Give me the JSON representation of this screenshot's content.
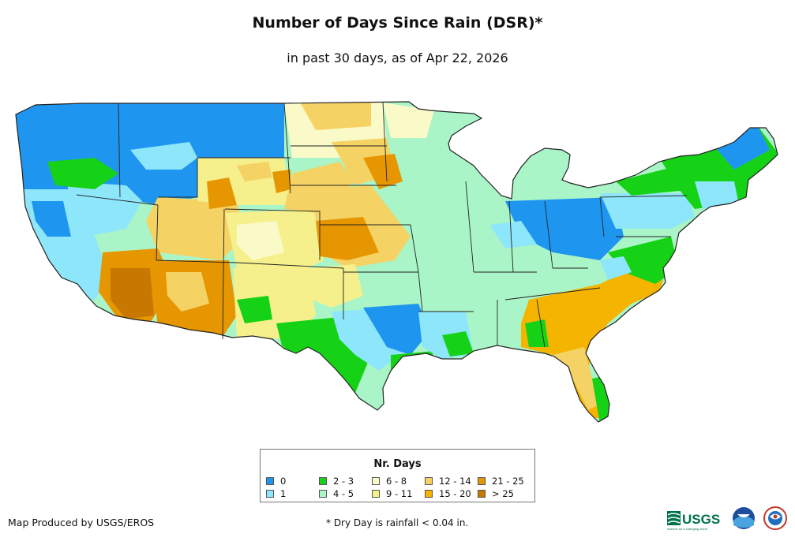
{
  "title": "Number of Days Since Rain (DSR)*",
  "subtitle": "in past 30 days, as of Apr 22, 2026",
  "legend": {
    "title": "Nr. Days",
    "items": [
      {
        "label": "0",
        "color": "#1e96f0"
      },
      {
        "label": "1",
        "color": "#8ee6fa"
      },
      {
        "label": "2 - 3",
        "color": "#16d216"
      },
      {
        "label": "4 - 5",
        "color": "#aaf5c8"
      },
      {
        "label": "6 - 8",
        "color": "#fafac8"
      },
      {
        "label": "9 - 11",
        "color": "#f5f08c"
      },
      {
        "label": "12 - 14",
        "color": "#f5d264"
      },
      {
        "label": "15 - 20",
        "color": "#f5b400"
      },
      {
        "label": "21 - 25",
        "color": "#e69600"
      },
      {
        "label": "> 25",
        "color": "#c87800"
      }
    ]
  },
  "credit": "Map Produced by USGS/EROS",
  "footnote": "* Dry Day is rainfall < 0.04 in.",
  "logos": {
    "usgs": "USGS",
    "usgs_tagline": "science for a changing world"
  }
}
